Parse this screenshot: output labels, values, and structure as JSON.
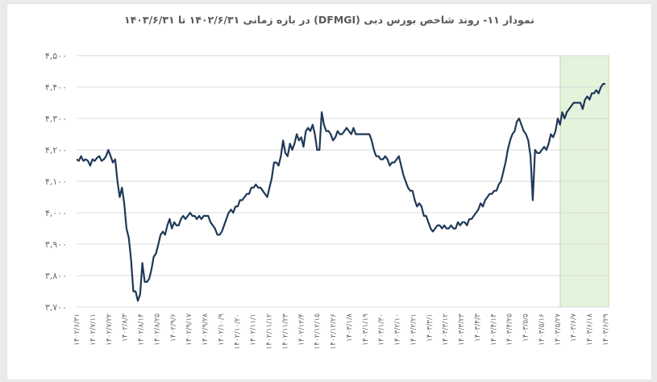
{
  "title": "نمودار ۱۱- روند شاخص بورس دبی (DFMGI) در بازه زمانی ۱۴۰۲/۶/۳۱ تا ۱۴۰۳/۶/۳۱",
  "colors": {
    "line": "#1f3857",
    "highlight": "#e4f3dc",
    "highlight_border": "#b6d9a2",
    "grid": "#d9d9d9"
  },
  "chart_data": {
    "type": "line",
    "title": "نمودار ۱۱- روند شاخص بورس دبی (DFMGI) در بازه زمانی ۱۴۰۲/۶/۳۱ تا ۱۴۰۳/۶/۳۱",
    "xlabel": "",
    "ylabel": "",
    "ylim": [
      3700,
      4500
    ],
    "yticks": [
      3700,
      3800,
      3900,
      4000,
      4100,
      4200,
      4300,
      4400,
      4500
    ],
    "ytick_labels": [
      "۳,۷۰۰",
      "۳,۸۰۰",
      "۳,۹۰۰",
      "۴,۰۰۰",
      "۴,۱۰۰",
      "۴,۲۰۰",
      "۴,۳۰۰",
      "۴,۴۰۰",
      "۴,۵۰۰"
    ],
    "grid": "horizontal",
    "x_tick_labels": [
      "۱۴۰۲/۶/۳۱",
      "۱۴۰۲/۷/۱۱",
      "۱۴۰۲/۷/۲۲",
      "۱۴۰۲/۸/۳",
      "۱۴۰۲/۸/۱۴",
      "۱۴۰۲/۸/۲۵",
      "۱۴۰۲/۹/۶",
      "۱۴۰۲/۹/۱۷",
      "۱۴۰۲/۹/۲۸",
      "۱۴۰۲/۱۰/۹",
      "۱۴۰۲/۱۰/۲۰",
      "۱۴۰۲/۱۱/۱",
      "۱۴۰۲/۱۱/۱۲",
      "۱۴۰۲/۱۱/۲۳",
      "۱۴۰۲/۱۲/۴",
      "۱۴۰۲/۱۲/۱۵",
      "۱۴۰۲/۱۲/۲۶",
      "۱۴۰۳/۱/۸",
      "۱۴۰۳/۱/۱۹",
      "۱۴۰۳/۱/۳۰",
      "۱۴۰۳/۲/۱۰",
      "۱۴۰۳/۲/۲۱",
      "۱۴۰۳/۳/۱",
      "۱۴۰۳/۳/۱۲",
      "۱۴۰۳/۳/۲۳",
      "۱۴۰۳/۴/۳",
      "۱۴۰۳/۴/۱۴",
      "۱۴۰۳/۴/۲۵",
      "۱۴۰۳/۵/۵",
      "۱۴۰۳/۵/۱۶",
      "۱۴۰۳/۵/۲۷",
      "۱۴۰۳/۶/۷",
      "۱۴۰۳/۶/۱۸",
      "۱۴۰۳/۶/۲۹"
    ],
    "highlight_range": [
      "۱۴۰۳/۶/۱",
      "۱۴۰۳/۶/۳۱"
    ],
    "series": [
      {
        "values": [
          4170,
          4165,
          4180,
          4165,
          4170,
          4165,
          4150,
          4170,
          4165,
          4175,
          4180,
          4165,
          4170,
          4180,
          4200,
          4180,
          4160,
          4170,
          4100,
          4050,
          4080,
          4030,
          3950,
          3920,
          3850,
          3750,
          3750,
          3720,
          3740,
          3840,
          3780,
          3780,
          3790,
          3820,
          3860,
          3870,
          3900,
          3930,
          3940,
          3930,
          3960,
          3980,
          3950,
          3970,
          3960,
          3960,
          3980,
          3990,
          3980,
          3990,
          4000,
          3990,
          3990,
          3980,
          3990,
          3980,
          3990,
          3990,
          3990,
          3970,
          3960,
          3950,
          3930,
          3930,
          3940,
          3960,
          3980,
          4000,
          4010,
          4000,
          4020,
          4020,
          4040,
          4040,
          4050,
          4060,
          4060,
          4080,
          4080,
          4090,
          4080,
          4080,
          4070,
          4060,
          4050,
          4080,
          4110,
          4160,
          4160,
          4150,
          4180,
          4230,
          4190,
          4180,
          4220,
          4200,
          4220,
          4250,
          4230,
          4240,
          4210,
          4260,
          4270,
          4260,
          4280,
          4250,
          4200,
          4200,
          4320,
          4280,
          4260,
          4260,
          4250,
          4230,
          4240,
          4260,
          4250,
          4250,
          4260,
          4270,
          4260,
          4250,
          4270,
          4250,
          4250,
          4250,
          4250,
          4250,
          4250,
          4250,
          4230,
          4200,
          4180,
          4180,
          4170,
          4170,
          4180,
          4170,
          4150,
          4160,
          4160,
          4170,
          4180,
          4150,
          4120,
          4100,
          4080,
          4070,
          4070,
          4040,
          4020,
          4030,
          4020,
          3990,
          3990,
          3970,
          3950,
          3940,
          3950,
          3960,
          3960,
          3950,
          3960,
          3950,
          3950,
          3960,
          3950,
          3950,
          3970,
          3960,
          3970,
          3970,
          3960,
          3980,
          3980,
          3990,
          4000,
          4010,
          4030,
          4020,
          4040,
          4050,
          4060,
          4060,
          4070,
          4070,
          4090,
          4100,
          4130,
          4160,
          4200,
          4230,
          4250,
          4260,
          4290,
          4300,
          4280,
          4260,
          4250,
          4230,
          4180,
          4040,
          4200,
          4190,
          4190,
          4200,
          4210,
          4200,
          4220,
          4250,
          4240,
          4260,
          4300,
          4280,
          4320,
          4300,
          4320,
          4330,
          4340,
          4350,
          4350,
          4350,
          4350,
          4330,
          4360,
          4370,
          4360,
          4380,
          4380,
          4390,
          4380,
          4400,
          4410,
          4410
        ]
      }
    ]
  }
}
